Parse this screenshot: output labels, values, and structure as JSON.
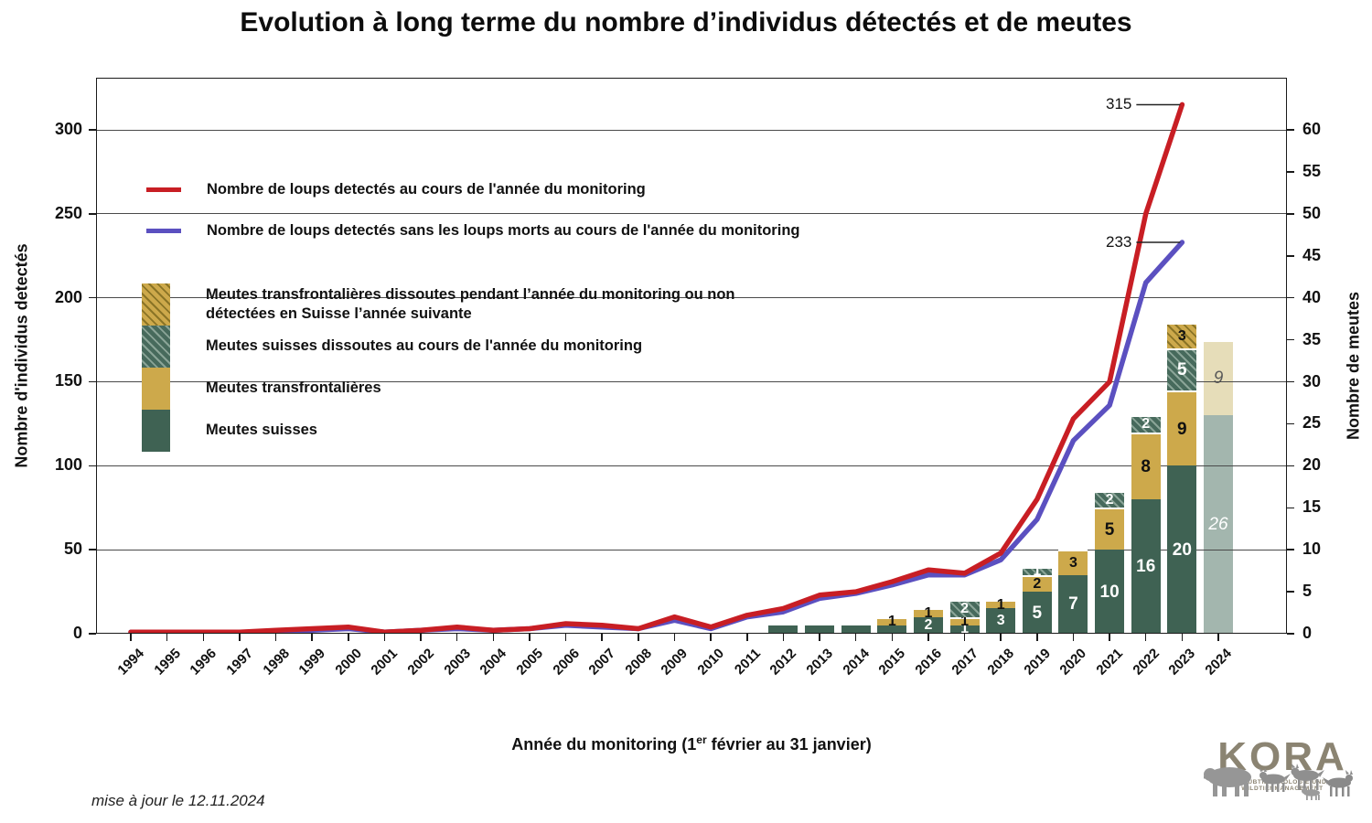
{
  "page": {
    "title": "Evolution à long terme du nombre d’individus détectés et de meutes",
    "footer_note": "mise à jour le 12.11.2024"
  },
  "logo": {
    "text": "KORA",
    "subtitle": "RAUBTIERÖKOLOGIE UND WILDTIERMANAGEMENT"
  },
  "chart_data": {
    "type": "bar+line",
    "title": "Evolution à long terme du nombre d’individus détectés et de meutes",
    "x_axis": {
      "label_pre": "Année du monitoring (1",
      "label_sup": "er",
      "label_post": " février au 31 janvier)",
      "years": [
        1994,
        1995,
        1996,
        1997,
        1998,
        1999,
        2000,
        2001,
        2002,
        2003,
        2004,
        2005,
        2006,
        2007,
        2008,
        2009,
        2010,
        2011,
        2012,
        2013,
        2014,
        2015,
        2016,
        2017,
        2018,
        2019,
        2020,
        2021,
        2022,
        2023,
        2024
      ]
    },
    "y_left": {
      "label": "Nombre d'individus detectés",
      "ticks": [
        0,
        50,
        100,
        150,
        200,
        250,
        300
      ],
      "max": 331
    },
    "y_right": {
      "label": "Nombre de meutes",
      "ticks": [
        0,
        5,
        10,
        15,
        20,
        25,
        30,
        35,
        40,
        45,
        50,
        55,
        60
      ],
      "gridlines_at": [
        10,
        20,
        30,
        40,
        50,
        60
      ],
      "max": 66.2
    },
    "line_series": [
      {
        "name": "Nombre de loups detectés au cours de l'année du monitoring",
        "color": "#c81e24",
        "start_year": 1994,
        "values": [
          1,
          1,
          1,
          1,
          2,
          3,
          4,
          1,
          2,
          4,
          2,
          3,
          6,
          5,
          3,
          10,
          4,
          11,
          15,
          23,
          25,
          31,
          38,
          36,
          48,
          80,
          128,
          150,
          250,
          315
        ]
      },
      {
        "name": "Nombre de loups detectés sans les loups morts au cours de l'année du monitoring",
        "color": "#5b50c0",
        "start_year": 1994,
        "values": [
          1,
          1,
          1,
          1,
          1,
          2,
          3,
          1,
          2,
          3,
          2,
          3,
          5,
          4,
          3,
          8,
          3,
          10,
          13,
          21,
          24,
          29,
          35,
          35,
          44,
          68,
          115,
          136,
          209,
          233
        ]
      }
    ],
    "annotations": [
      {
        "text": "315",
        "series": 0
      },
      {
        "text": "233",
        "series": 1
      }
    ],
    "bars": [
      {
        "year": 2012,
        "segments": [
          {
            "type": "ch",
            "value": 1,
            "label": ""
          }
        ]
      },
      {
        "year": 2013,
        "segments": [
          {
            "type": "ch",
            "value": 1,
            "label": ""
          }
        ]
      },
      {
        "year": 2014,
        "segments": [
          {
            "type": "ch",
            "value": 1,
            "label": ""
          }
        ]
      },
      {
        "year": 2015,
        "segments": [
          {
            "type": "ch",
            "value": 1,
            "label": ""
          },
          {
            "type": "tf",
            "value": 1,
            "label": "1"
          }
        ]
      },
      {
        "year": 2016,
        "segments": [
          {
            "type": "ch",
            "value": 2,
            "label": "2"
          },
          {
            "type": "tf",
            "value": 1,
            "label": "1"
          }
        ]
      },
      {
        "year": 2017,
        "segments": [
          {
            "type": "ch",
            "value": 1,
            "label": "1"
          },
          {
            "type": "tf",
            "value": 1,
            "label": "1"
          },
          {
            "type": "ch_diss",
            "value": 2,
            "label": "2"
          }
        ]
      },
      {
        "year": 2018,
        "segments": [
          {
            "type": "ch",
            "value": 3,
            "label": "3"
          },
          {
            "type": "tf",
            "value": 1,
            "label": "1"
          }
        ]
      },
      {
        "year": 2019,
        "segments": [
          {
            "type": "ch",
            "value": 5,
            "label": "5"
          },
          {
            "type": "tf",
            "value": 2,
            "label": "2"
          },
          {
            "type": "ch_diss",
            "value": 1,
            "label": "1"
          }
        ]
      },
      {
        "year": 2020,
        "segments": [
          {
            "type": "ch",
            "value": 7,
            "label": "7"
          },
          {
            "type": "tf",
            "value": 3,
            "label": "3"
          }
        ]
      },
      {
        "year": 2021,
        "segments": [
          {
            "type": "ch",
            "value": 10,
            "label": "10"
          },
          {
            "type": "tf",
            "value": 5,
            "label": "5"
          },
          {
            "type": "ch_diss",
            "value": 2,
            "label": "2"
          }
        ]
      },
      {
        "year": 2022,
        "segments": [
          {
            "type": "ch",
            "value": 16,
            "label": "16"
          },
          {
            "type": "tf",
            "value": 8,
            "label": "8"
          },
          {
            "type": "ch_diss",
            "value": 2,
            "label": "2"
          }
        ]
      },
      {
        "year": 2023,
        "segments": [
          {
            "type": "ch",
            "value": 20,
            "label": "20"
          },
          {
            "type": "tf",
            "value": 9,
            "label": "9"
          },
          {
            "type": "ch_diss",
            "value": 5,
            "label": "5"
          },
          {
            "type": "tf_diss",
            "value": 3,
            "label": "3"
          }
        ]
      },
      {
        "year": 2024,
        "segments": [
          {
            "type": "ch_prov",
            "value": 26,
            "label": "26"
          },
          {
            "type": "tf_prov",
            "value": 9,
            "label": "9"
          }
        ]
      }
    ],
    "bar_legend": [
      {
        "type": "tf_diss",
        "label": "Meutes transfrontalières dissoutes pendant l’année du monitoring ou non détectées en Suisse l’année suivante"
      },
      {
        "type": "ch_diss",
        "label": "Meutes suisses dissoutes au cours de l'année du monitoring"
      },
      {
        "type": "tf",
        "label": "Meutes transfrontalières"
      },
      {
        "type": "ch",
        "label": "Meutes suisses"
      }
    ],
    "colors": {
      "meutes_suisses": "#3f6253",
      "meutes_transfrontalieres": "#cda94b",
      "meutes_suisses_2024": "#a3b6ae",
      "meutes_transfrontalieres_2024": "#e6ddb9",
      "ligne_detectes": "#c81e24",
      "ligne_sans_morts": "#5b50c0"
    }
  }
}
